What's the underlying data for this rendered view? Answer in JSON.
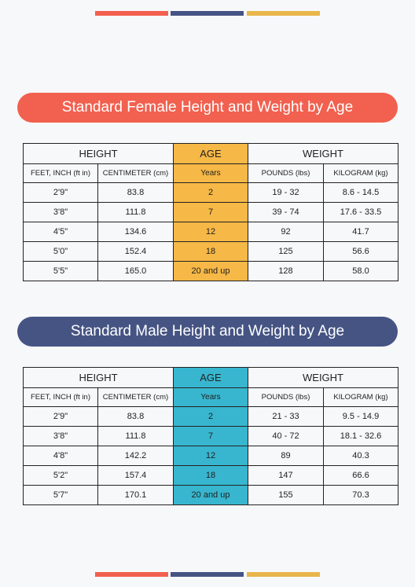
{
  "colors": {
    "coral": "#f2604f",
    "navy": "#465484",
    "mustard": "#e9b64b",
    "female_age": "#f6b846",
    "male_age": "#38b6cf"
  },
  "female": {
    "title": "Standard Female Height and Weight by Age",
    "headers": {
      "height": "HEIGHT",
      "age": "AGE",
      "weight": "WEIGHT",
      "feet": "FEET, INCH (ft in)",
      "cm": "CENTIMETER (cm)",
      "years": "Years",
      "pounds": "POUNDS (lbs)",
      "kg": "KILOGRAM (kg)"
    },
    "rows": [
      [
        "2'9\"",
        "83.8",
        "2",
        "19 - 32",
        "8.6 - 14.5"
      ],
      [
        "3'8\"",
        "111.8",
        "7",
        "39 - 74",
        "17.6 - 33.5"
      ],
      [
        "4'5\"",
        "134.6",
        "12",
        "92",
        "41.7"
      ],
      [
        "5'0\"",
        "152.4",
        "18",
        "125",
        "56.6"
      ],
      [
        "5'5\"",
        "165.0",
        "20 and up",
        "128",
        "58.0"
      ]
    ]
  },
  "male": {
    "title": "Standard Male Height and Weight by Age",
    "headers": {
      "height": "HEIGHT",
      "age": "AGE",
      "weight": "WEIGHT",
      "feet": "FEET, INCH (ft in)",
      "cm": "CENTIMETER (cm)",
      "years": "Years",
      "pounds": "POUNDS (lbs)",
      "kg": "KILOGRAM (kg)"
    },
    "rows": [
      [
        "2'9\"",
        "83.8",
        "2",
        "21 - 33",
        "9.5 - 14.9"
      ],
      [
        "3'8\"",
        "111.8",
        "7",
        "40 - 72",
        "18.1 - 32.6"
      ],
      [
        "4'8\"",
        "142.2",
        "12",
        "89",
        "40.3"
      ],
      [
        "5'2\"",
        "157.4",
        "18",
        "147",
        "66.6"
      ],
      [
        "5'7\"",
        "170.1",
        "20 and up",
        "155",
        "70.3"
      ]
    ]
  }
}
